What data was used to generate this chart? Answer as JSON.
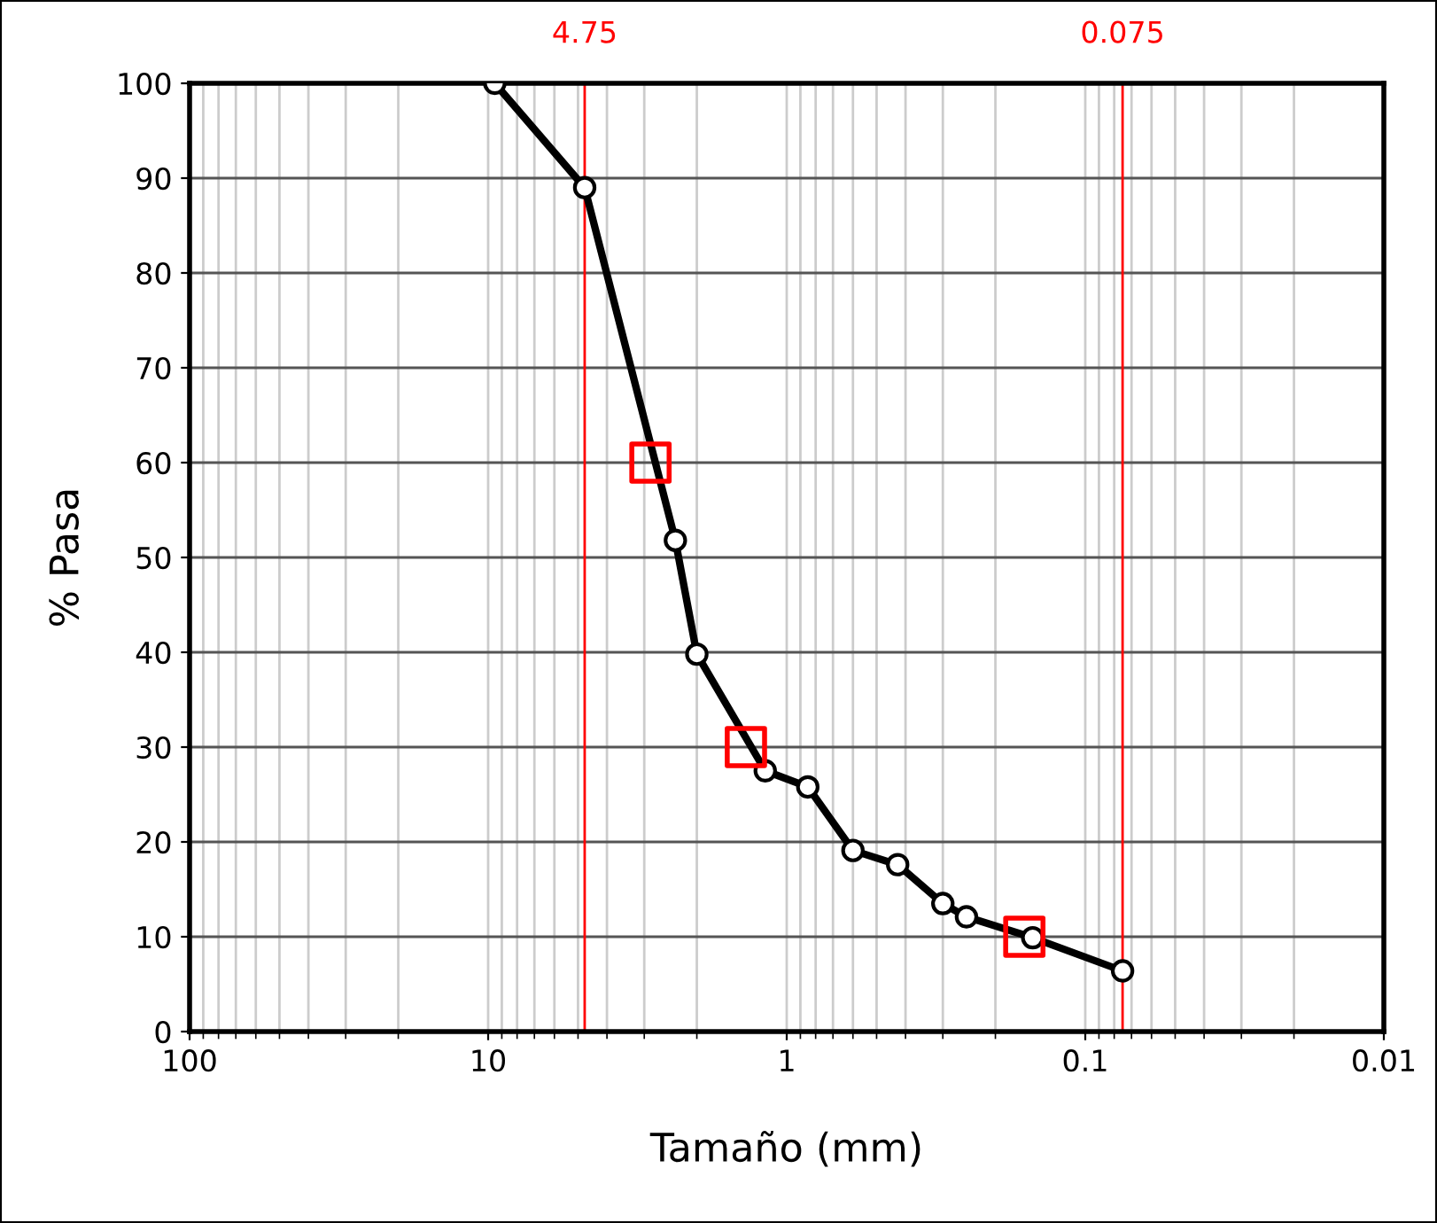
{
  "chart_data": {
    "type": "line",
    "xlabel": "Tamaño (mm)",
    "ylabel": "% Pasa",
    "log": "x",
    "xlim": [
      100,
      0.01
    ],
    "xticks": [
      100,
      10,
      1,
      0.1,
      0.01
    ],
    "ylim": [
      0,
      100
    ],
    "yticks": [
      0,
      10,
      20,
      30,
      40,
      50,
      60,
      70,
      80,
      90,
      100
    ],
    "grid": true,
    "legend": false,
    "series": [
      {
        "color": "#000000",
        "marker": "circle",
        "line_style": "solid",
        "x": [
          9.5,
          4.75,
          2.36,
          2.0,
          1.18,
          0.85,
          0.6,
          0.425,
          0.3,
          0.25,
          0.15,
          0.075
        ],
        "values": [
          100,
          89,
          51.8,
          39.8,
          27.5,
          25.8,
          19.1,
          17.6,
          13.5,
          12.1,
          9.9,
          6.4
        ]
      },
      {
        "type": "scatter",
        "color": "#ff0000",
        "marker": "square",
        "x": [
          2.86,
          1.37,
          0.16
        ],
        "values": [
          60,
          30,
          10
        ]
      }
    ],
    "ref_lines": [
      {
        "axis": "x",
        "value": 4.75,
        "label": "4.75",
        "color": "#ff0000"
      },
      {
        "axis": "x",
        "value": 0.075,
        "label": "0.075",
        "color": "#ff0000"
      }
    ]
  }
}
